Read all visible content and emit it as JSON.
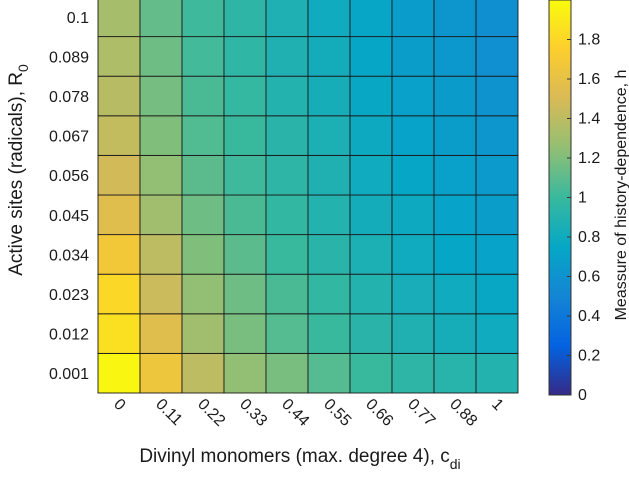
{
  "chart_data": {
    "type": "heatmap",
    "title": "",
    "xlabel": "Divinyl monomers (max. degree 4), c",
    "xlabel_sub": "di",
    "ylabel": "Active sites (radicals), R",
    "ylabel_sub": "0",
    "x_categories": [
      "0",
      "0.11",
      "0.22",
      "0.33",
      "0.44",
      "0.55",
      "0.66",
      "0.77",
      "0.88",
      "1"
    ],
    "y_categories": [
      "0.001",
      "0.012",
      "0.023",
      "0.034",
      "0.045",
      "0.056",
      "0.067",
      "0.078",
      "0.089",
      "0.1"
    ],
    "values": [
      [
        1.98,
        1.65,
        1.4,
        1.25,
        1.18,
        1.08,
        1.0,
        0.95,
        0.92,
        0.9
      ],
      [
        1.85,
        1.55,
        1.3,
        1.18,
        1.08,
        1.0,
        0.93,
        0.88,
        0.83,
        0.8
      ],
      [
        1.8,
        1.45,
        1.25,
        1.15,
        1.05,
        0.97,
        0.9,
        0.84,
        0.8,
        0.76
      ],
      [
        1.68,
        1.4,
        1.2,
        1.1,
        1.0,
        0.93,
        0.86,
        0.8,
        0.75,
        0.72
      ],
      [
        1.55,
        1.3,
        1.15,
        1.05,
        0.97,
        0.9,
        0.82,
        0.78,
        0.72,
        0.68
      ],
      [
        1.48,
        1.25,
        1.1,
        1.02,
        0.95,
        0.88,
        0.8,
        0.75,
        0.7,
        0.65
      ],
      [
        1.42,
        1.2,
        1.07,
        1.0,
        0.93,
        0.86,
        0.78,
        0.72,
        0.68,
        0.62
      ],
      [
        1.38,
        1.17,
        1.05,
        0.98,
        0.9,
        0.83,
        0.76,
        0.7,
        0.66,
        0.6
      ],
      [
        1.35,
        1.15,
        1.03,
        0.96,
        0.88,
        0.82,
        0.75,
        0.68,
        0.64,
        0.58
      ],
      [
        1.32,
        1.12,
        1.02,
        0.95,
        0.87,
        0.8,
        0.74,
        0.67,
        0.62,
        0.57
      ]
    ],
    "value_range": [
      0,
      2
    ],
    "colormap": "parula",
    "colorbar": {
      "label": "Meassure of history-dependence, h",
      "ticks": [
        "0",
        "0.2",
        "0.4",
        "0.6",
        "0.8",
        "1",
        "1.2",
        "1.4",
        "1.6",
        "1.8"
      ]
    },
    "grid": true
  }
}
